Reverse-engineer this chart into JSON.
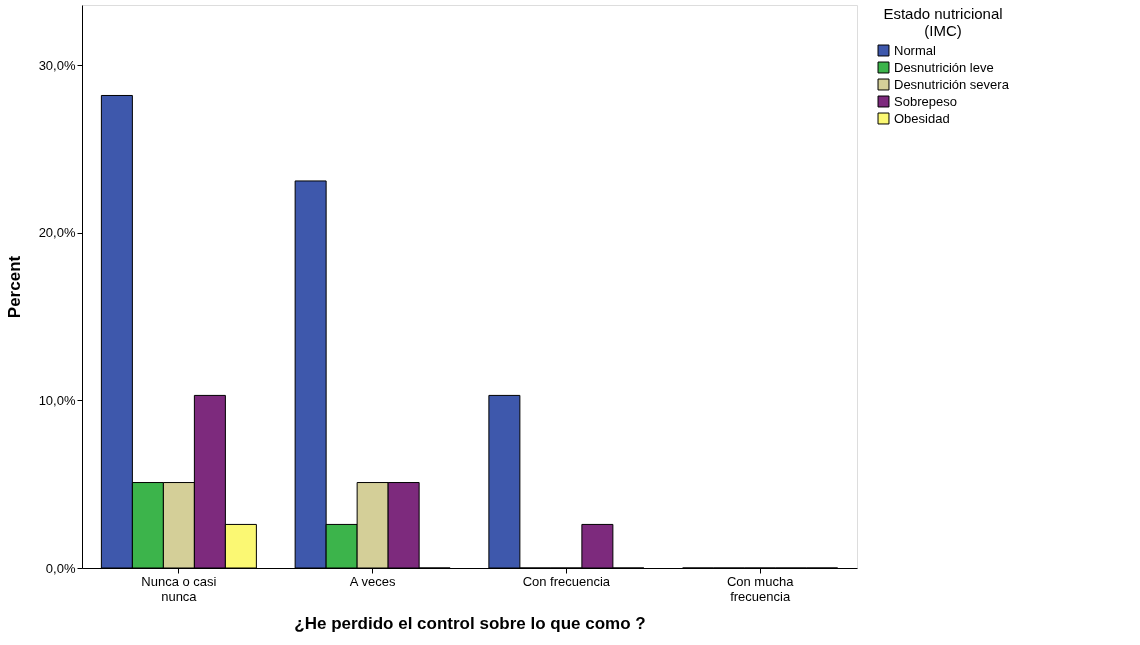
{
  "chart_data": {
    "type": "bar",
    "xlabel": "¿He perdido el control sobre lo que como ?",
    "ylabel": "Percent",
    "legend_title": "Estado nutricional (IMC)",
    "categories": [
      "Nunca o casi nunca",
      "A veces",
      "Con frecuencia",
      "Con mucha frecuencia"
    ],
    "series": [
      {
        "name": "Normal",
        "color": "#3e58ac",
        "values": [
          28.2,
          23.1,
          10.3,
          0
        ]
      },
      {
        "name": "Desnutrición leve",
        "color": "#3cb44b",
        "values": [
          5.1,
          2.6,
          0,
          0
        ]
      },
      {
        "name": "Desnutrición severa",
        "color": "#d4cf98",
        "values": [
          5.1,
          5.1,
          0,
          0
        ]
      },
      {
        "name": "Sobrepeso",
        "color": "#7d2a7d",
        "values": [
          10.3,
          5.1,
          2.6,
          0
        ]
      },
      {
        "name": "Obesidad",
        "color": "#fbf873",
        "values": [
          2.6,
          0,
          0,
          0
        ]
      }
    ],
    "ylim": [
      0,
      33.6
    ],
    "yticks": [
      {
        "value": 0,
        "label": "0,0%"
      },
      {
        "value": 10,
        "label": "10,0%"
      },
      {
        "value": 20,
        "label": "20,0%"
      },
      {
        "value": 30,
        "label": "30,0%"
      }
    ],
    "grid": false,
    "legend": "top right"
  }
}
